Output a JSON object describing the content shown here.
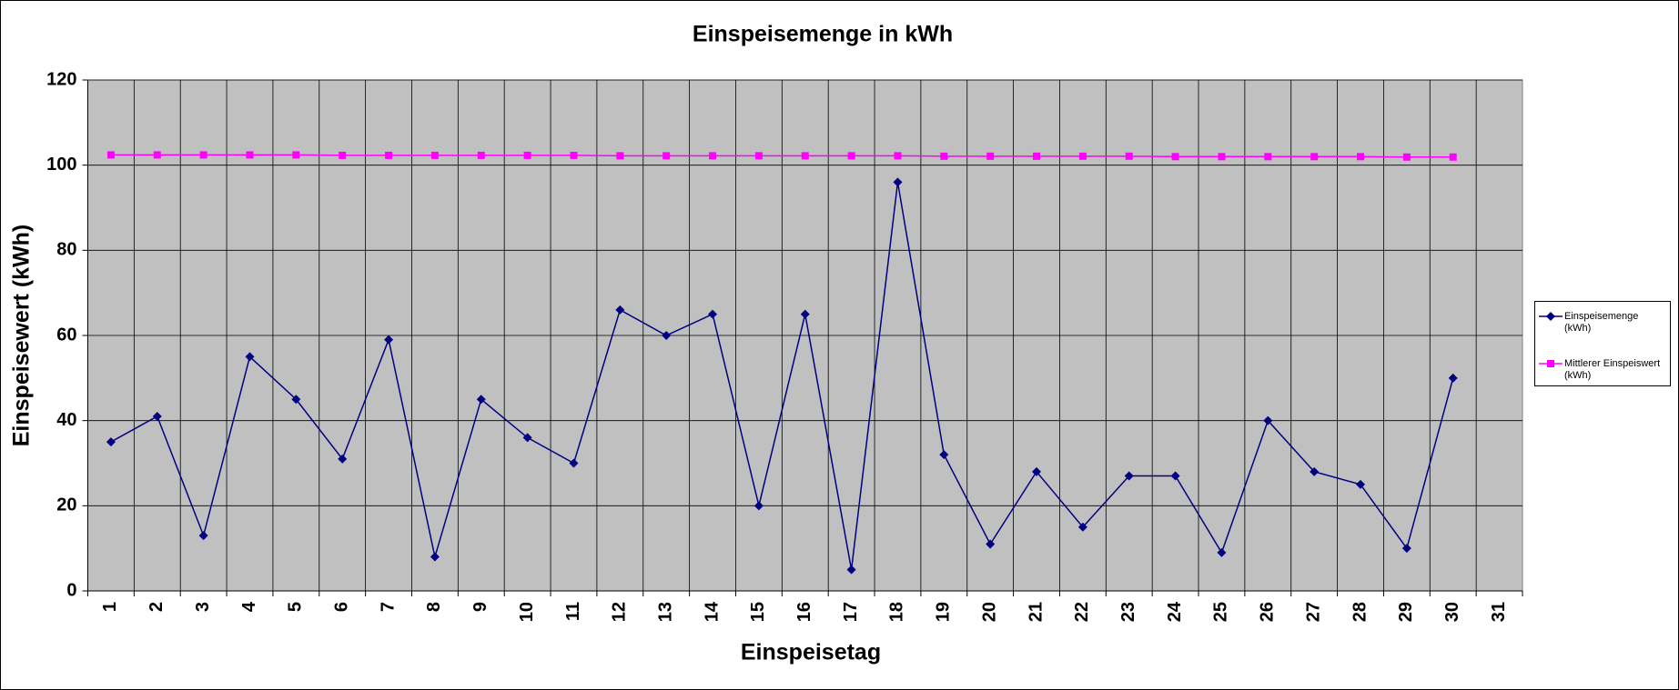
{
  "chart_data": {
    "type": "line",
    "title": "Einspeisemenge in kWh",
    "x_label": "Einspeisetag",
    "y_label": "Einspeisewert  (kWh)",
    "categories": [
      "1",
      "2",
      "3",
      "4",
      "5",
      "6",
      "7",
      "8",
      "9",
      "10",
      "11",
      "12",
      "13",
      "14",
      "15",
      "16",
      "17",
      "18",
      "19",
      "20",
      "21",
      "22",
      "23",
      "24",
      "25",
      "26",
      "27",
      "28",
      "29",
      "30",
      "31"
    ],
    "series": [
      {
        "name": "Einspeisemenge (kWh)",
        "color": "#000080",
        "marker": "diamond",
        "values": [
          35,
          41,
          13,
          55,
          45,
          31,
          59,
          8,
          45,
          36,
          30,
          66,
          60,
          65,
          20,
          65,
          5,
          96,
          32,
          11,
          28,
          15,
          27,
          27,
          9,
          40,
          28,
          25,
          10,
          50,
          null
        ]
      },
      {
        "name": "Mittlerer Einspeiswert (kWh)",
        "color": "#ff00ff",
        "marker": "square",
        "values": [
          102.4,
          102.4,
          102.4,
          102.4,
          102.4,
          102.3,
          102.3,
          102.3,
          102.3,
          102.3,
          102.3,
          102.2,
          102.2,
          102.2,
          102.2,
          102.2,
          102.2,
          102.2,
          102.1,
          102.1,
          102.1,
          102.1,
          102.1,
          102.0,
          102.0,
          102.0,
          102.0,
          102.0,
          101.9,
          101.9,
          null
        ]
      }
    ],
    "ylim": [
      0,
      120
    ],
    "yticks": [
      0,
      20,
      40,
      60,
      80,
      100,
      120
    ],
    "grid": true,
    "legend": "right"
  }
}
